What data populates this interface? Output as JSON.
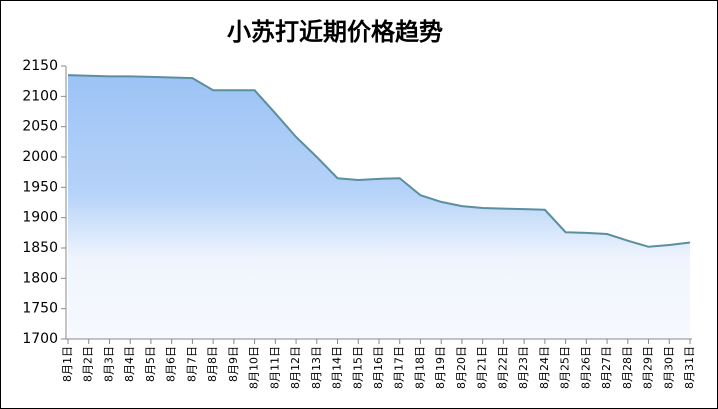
{
  "chart_data": {
    "type": "area",
    "title": "小苏打近期价格趋势",
    "categories": [
      "8月1日",
      "8月2日",
      "8月3日",
      "8月4日",
      "8月5日",
      "8月6日",
      "8月7日",
      "8月8日",
      "8月9日",
      "8月10日",
      "8月11日",
      "8月12日",
      "8月13日",
      "8月14日",
      "8月15日",
      "8月16日",
      "8月17日",
      "8月18日",
      "8月19日",
      "8月20日",
      "8月21日",
      "8月22日",
      "8月23日",
      "8月24日",
      "8月25日",
      "8月26日",
      "8月27日",
      "8月28日",
      "8月29日",
      "8月30日",
      "8月31日"
    ],
    "values": [
      2135,
      2134,
      2133,
      2133,
      2132,
      2131,
      2130,
      2110,
      2110,
      2110,
      2072,
      2033,
      2000,
      1965,
      1962,
      1964,
      1965,
      1937,
      1926,
      1919,
      1916,
      1915,
      1914,
      1913,
      1876,
      1875,
      1873,
      1862,
      1852,
      1855,
      1859
    ],
    "color": "#5a8fa0",
    "ylim": [
      1700,
      2150
    ],
    "yticks": [
      1700,
      1750,
      1800,
      1850,
      1900,
      1950,
      2000,
      2050,
      2100,
      2150
    ],
    "grid": false
  }
}
